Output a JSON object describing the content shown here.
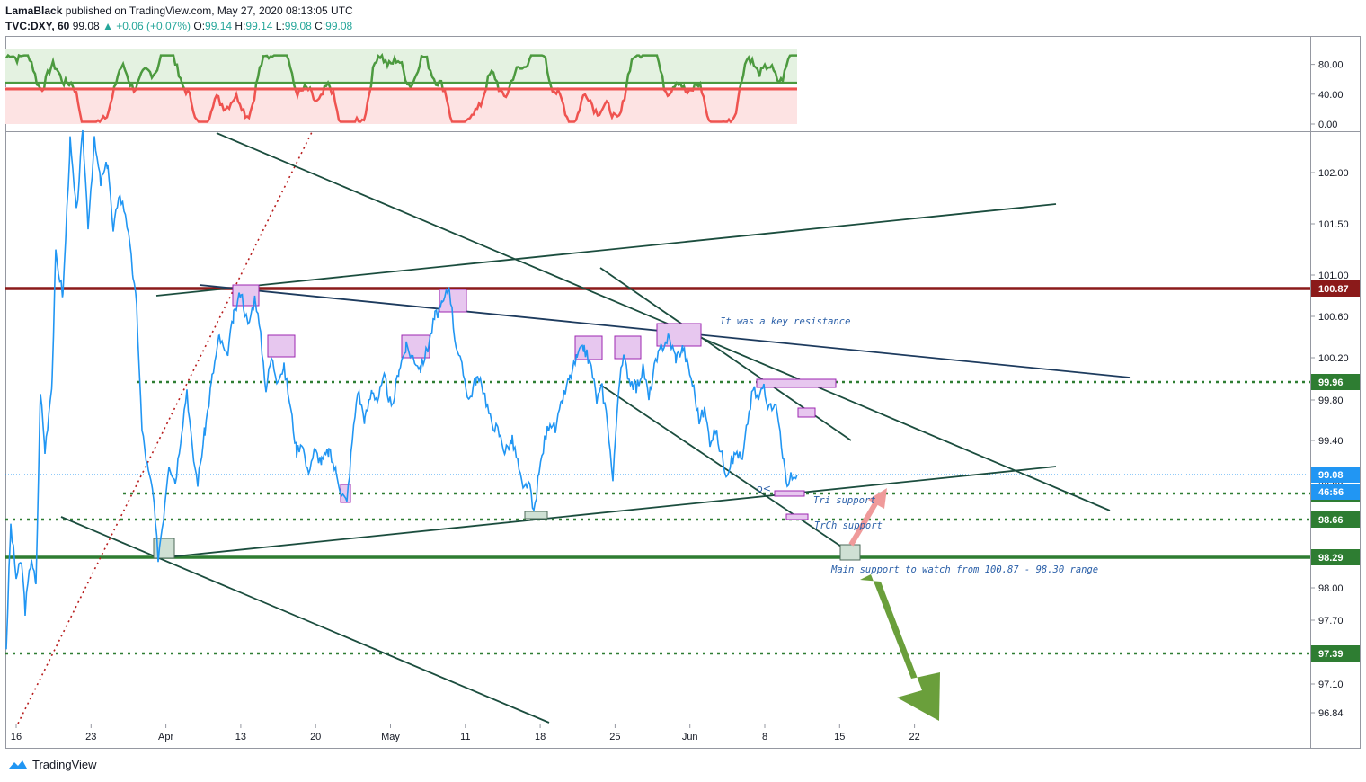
{
  "header": {
    "line1": {
      "author": "LamaBlack",
      "text": " published on TradingView.com, May 27, 2020 08:13:05 UTC"
    },
    "line2": {
      "symbol": "TVC:DXY, 60",
      "price": "99.08",
      "change": "▲ +0.06 (+0.07%)",
      "o_label": "O:",
      "o": "99.14",
      "h_label": "H:",
      "h": "99.14",
      "l_label": "L:",
      "l": "99.08",
      "c_label": "C:",
      "c": "99.08"
    }
  },
  "chart_data": [
    {
      "type": "line",
      "series": [],
      "ylim": [
        0,
        100
      ],
      "y_ticks": [
        "80.00",
        "40.00",
        "0.00"
      ],
      "levels": [
        55,
        47
      ],
      "zones": {
        "upper": [
          55,
          100
        ],
        "lower": [
          0,
          47
        ]
      },
      "colors": {
        "overbought": "#4c9a3f",
        "oversold": "#ef5350"
      }
    },
    {
      "type": "line",
      "series": [
        {
          "values": []
        }
      ],
      "x_ticks": [
        "16",
        "23",
        "Apr",
        "13",
        "20",
        "May",
        "11",
        "18",
        "25",
        "Jun",
        "8",
        "15",
        "22"
      ],
      "y_ticks": [
        "102.00",
        "101.50",
        "101.00",
        "100.60",
        "100.20",
        "99.80",
        "99.40",
        "99.00",
        "98.00",
        "97.70",
        "97.10",
        "96.84"
      ],
      "ylim": [
        96.75,
        102.4
      ],
      "last_price": 99.08,
      "countdown": "46:56",
      "price_labels": [
        {
          "value": "100.87",
          "color": "#8b1a1a"
        },
        {
          "value": "99.96",
          "color": "#2e7d32"
        },
        {
          "value": "99.08",
          "color": "#2196f3"
        },
        {
          "value": "98.89",
          "color": "#2e7d32"
        },
        {
          "value": "98.66",
          "color": "#2e7d32"
        },
        {
          "value": "98.29",
          "color": "#2e7d32"
        },
        {
          "value": "97.39",
          "color": "#2e7d32"
        }
      ],
      "annotations": [
        "It was a key resistance",
        "Tri support",
        "TrCh support",
        "Main support to watch from 100.87 - 98.30 range"
      ],
      "colors": {
        "price": "#2196f3",
        "resistance": "#8b1a1a",
        "support": "#2e7d32",
        "trend": "#1b4d3e"
      }
    }
  ],
  "footer": {
    "brand": "TradingView"
  }
}
